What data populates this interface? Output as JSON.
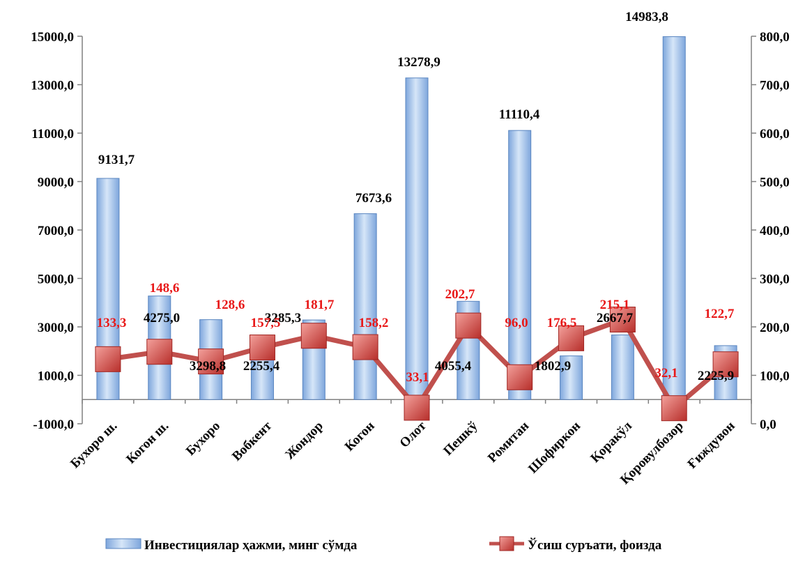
{
  "chart_data": {
    "type": "bar",
    "categories": [
      "Бухоро ш.",
      "Когон ш.",
      "Бухоро",
      "Вобкент",
      "Жондор",
      "Когон",
      "Олот",
      "Пешкў",
      "Ромитан",
      "Шофиркон",
      "Қоракўл",
      "Қоровулбозор",
      "Ғиждувон"
    ],
    "series": [
      {
        "name": "Инвестициялар ҳажми, минг сўмда",
        "type": "bar",
        "axis": "left",
        "values": [
          9131.7,
          4275.0,
          3298.8,
          2255.4,
          3285.3,
          7673.6,
          13278.9,
          4055.4,
          11110.4,
          1802.9,
          2667.7,
          14983.8,
          2225.9
        ],
        "labels": [
          "9131,7",
          "4275,0",
          "3298,8",
          "2255,4",
          "3285,3",
          "7673,6",
          "13278,9",
          "4055,4",
          "11110,4",
          "1802,9",
          "2667,7",
          "14983,8",
          "2225,9"
        ]
      },
      {
        "name": "Ўсиш суръати, фоизда",
        "type": "line",
        "axis": "right",
        "values": [
          133.3,
          148.6,
          128.6,
          157.5,
          181.7,
          158.2,
          33.1,
          202.7,
          96.0,
          176.5,
          215.1,
          32.1,
          122.7
        ],
        "labels": [
          "133,3",
          "148,6",
          "128,6",
          "157,5",
          "181,7",
          "158,2",
          "33,1",
          "202,7",
          "96,0",
          "176,5",
          "215,1",
          "32,1",
          "122,7"
        ]
      }
    ],
    "y_left": {
      "min": -1000,
      "max": 15000,
      "ticks": [
        "15000,0",
        "13000,0",
        "11000,0",
        "9000,0",
        "7000,0",
        "5000,0",
        "3000,0",
        "1000,0",
        "-1000,0"
      ],
      "tick_values": [
        15000,
        13000,
        11000,
        9000,
        7000,
        5000,
        3000,
        1000,
        -1000
      ]
    },
    "y_right": {
      "min": 0,
      "max": 800,
      "ticks": [
        "800,0",
        "700,0",
        "600,0",
        "500,0",
        "400,0",
        "300,0",
        "200,0",
        "100,0",
        "0,0"
      ],
      "tick_values": [
        800,
        700,
        600,
        500,
        400,
        300,
        200,
        100,
        0
      ]
    },
    "grid": false,
    "legend_position": "bottom",
    "colors": {
      "bar_light": "#d6e6f8",
      "bar_dark": "#7ea6dc",
      "bar_edge": "#5a86c0",
      "line": "#c0504d",
      "marker_light": "#f3a09b",
      "marker_dark": "#b72e2a",
      "line_label": "#e81818"
    }
  }
}
